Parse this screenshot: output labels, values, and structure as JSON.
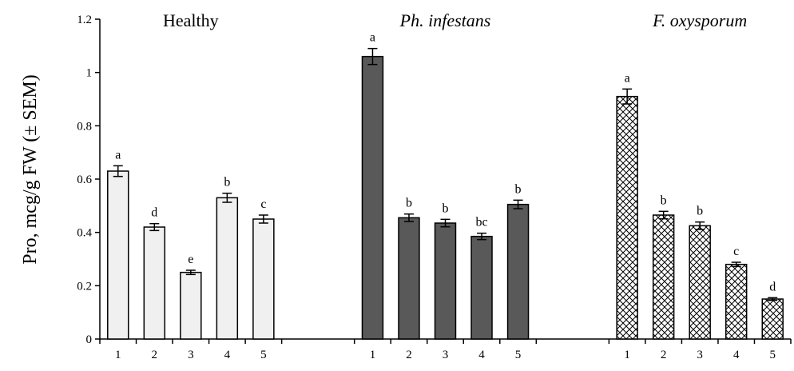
{
  "chart_data": {
    "type": "bar",
    "ylabel": "Pro, mcg/g FW (± SEM)",
    "xlabel": "",
    "ylim": [
      0,
      1.2
    ],
    "yticks": [
      0,
      0.2,
      0.4,
      0.6,
      0.8,
      1,
      1.2
    ],
    "ytick_labels": [
      "0",
      "0.2",
      "0.4",
      "0.6",
      "0.8",
      "1",
      "1.2"
    ],
    "grid": false,
    "legend": "none",
    "groups": [
      {
        "name": "Healthy",
        "italic": false,
        "fill": "light-gray",
        "fill_color": "#f0f0f0",
        "categories": [
          "1",
          "2",
          "3",
          "4",
          "5"
        ],
        "values": [
          0.63,
          0.42,
          0.25,
          0.53,
          0.45
        ],
        "errors": [
          0.02,
          0.013,
          0.008,
          0.017,
          0.015
        ],
        "significance": [
          "a",
          "d",
          "e",
          "b",
          "c"
        ]
      },
      {
        "name": "Ph. infestans",
        "italic": true,
        "fill": "dark-gray",
        "fill_color": "#595959",
        "categories": [
          "1",
          "2",
          "3",
          "4",
          "5"
        ],
        "values": [
          1.06,
          0.455,
          0.435,
          0.385,
          0.505
        ],
        "errors": [
          0.03,
          0.014,
          0.014,
          0.012,
          0.016
        ],
        "significance": [
          "a",
          "b",
          "b",
          "bc",
          "b"
        ]
      },
      {
        "name": "F. oxysporum",
        "italic": true,
        "fill": "crosshatch-pattern",
        "fill_color": "#000000",
        "categories": [
          "1",
          "2",
          "3",
          "4",
          "5"
        ],
        "values": [
          0.91,
          0.465,
          0.425,
          0.28,
          0.15
        ],
        "errors": [
          0.028,
          0.014,
          0.014,
          0.008,
          0.005
        ],
        "significance": [
          "a",
          "b",
          "b",
          "c",
          "d"
        ]
      }
    ]
  }
}
